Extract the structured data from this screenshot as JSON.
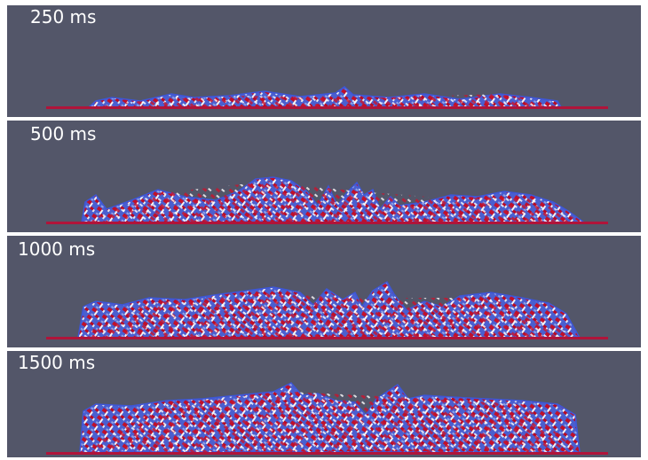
{
  "panels": [
    {
      "label": "250 ms"
    },
    {
      "label": "500 ms"
    },
    {
      "label": "1000 ms"
    },
    {
      "label": "1500 ms"
    }
  ]
}
